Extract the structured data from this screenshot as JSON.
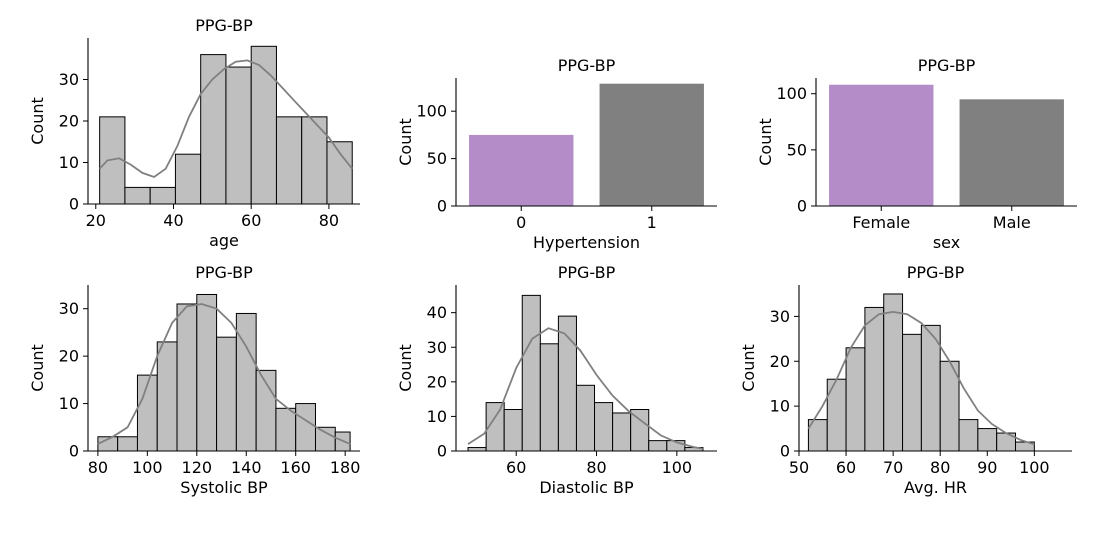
{
  "colors": {
    "hist_fill": "#bfbfbf",
    "hist_edge": "#000000",
    "kde_line": "#808080",
    "bar_purple": "#b48cc8",
    "bar_gray": "#808080"
  },
  "chart_data": [
    {
      "id": "age",
      "type": "histogram",
      "title": "PPG-BP",
      "xlabel": "age",
      "ylabel": "Count",
      "xlim": [
        18,
        88
      ],
      "ylim": [
        0,
        40
      ],
      "xticks": [
        20,
        40,
        60,
        80
      ],
      "yticks": [
        0,
        10,
        20,
        30
      ],
      "bins": [
        {
          "x0": 21,
          "x1": 27.5,
          "count": 21
        },
        {
          "x0": 27.5,
          "x1": 34,
          "count": 4
        },
        {
          "x0": 34,
          "x1": 40.5,
          "count": 4
        },
        {
          "x0": 40.5,
          "x1": 47,
          "count": 12
        },
        {
          "x0": 47,
          "x1": 53.5,
          "count": 36
        },
        {
          "x0": 53.5,
          "x1": 60,
          "count": 33
        },
        {
          "x0": 60,
          "x1": 66.5,
          "count": 38
        },
        {
          "x0": 66.5,
          "x1": 73,
          "count": 21
        },
        {
          "x0": 73,
          "x1": 79.5,
          "count": 21
        },
        {
          "x0": 79.5,
          "x1": 86,
          "count": 15
        }
      ],
      "kde": [
        [
          21,
          8.5
        ],
        [
          23,
          10.5
        ],
        [
          26,
          11
        ],
        [
          29,
          9.5
        ],
        [
          32,
          7.5
        ],
        [
          35,
          6.5
        ],
        [
          38,
          8.5
        ],
        [
          41,
          14
        ],
        [
          44,
          21
        ],
        [
          47,
          26.5
        ],
        [
          50,
          30
        ],
        [
          53,
          32.5
        ],
        [
          56,
          34.3
        ],
        [
          59,
          34.6
        ],
        [
          62,
          33.5
        ],
        [
          65,
          31
        ],
        [
          68,
          28
        ],
        [
          71,
          25
        ],
        [
          74,
          22
        ],
        [
          77,
          19
        ],
        [
          80,
          16
        ],
        [
          83,
          12
        ],
        [
          86,
          8.5
        ]
      ]
    },
    {
      "id": "hypertension",
      "type": "bar",
      "title": "PPG-BP",
      "xlabel": "Hypertension",
      "ylabel": "Count",
      "categories": [
        "0",
        "1"
      ],
      "values": [
        75,
        129
      ],
      "bar_colors": [
        "#b48cc8",
        "#808080"
      ],
      "ylim": [
        0,
        135
      ],
      "yticks": [
        0,
        50,
        100
      ]
    },
    {
      "id": "sex",
      "type": "bar",
      "title": "PPG-BP",
      "xlabel": "sex",
      "ylabel": "Count",
      "categories": [
        "Female",
        "Male"
      ],
      "values": [
        108,
        95
      ],
      "bar_colors": [
        "#b48cc8",
        "#808080"
      ],
      "ylim": [
        0,
        114
      ],
      "yticks": [
        0,
        50,
        100
      ]
    },
    {
      "id": "systolic",
      "type": "histogram",
      "title": "PPG-BP",
      "xlabel": "Systolic BP",
      "ylabel": "Count",
      "xlim": [
        76,
        186
      ],
      "ylim": [
        0,
        35
      ],
      "xticks": [
        80,
        100,
        120,
        140,
        160,
        180
      ],
      "yticks": [
        0,
        10,
        20,
        30
      ],
      "bins": [
        {
          "x0": 80,
          "x1": 88,
          "count": 3
        },
        {
          "x0": 88,
          "x1": 96,
          "count": 3
        },
        {
          "x0": 96,
          "x1": 104,
          "count": 16
        },
        {
          "x0": 104,
          "x1": 112,
          "count": 23
        },
        {
          "x0": 112,
          "x1": 120,
          "count": 31
        },
        {
          "x0": 120,
          "x1": 128,
          "count": 33
        },
        {
          "x0": 128,
          "x1": 136,
          "count": 24
        },
        {
          "x0": 136,
          "x1": 144,
          "count": 29
        },
        {
          "x0": 144,
          "x1": 152,
          "count": 17
        },
        {
          "x0": 152,
          "x1": 160,
          "count": 9
        },
        {
          "x0": 160,
          "x1": 168,
          "count": 10
        },
        {
          "x0": 168,
          "x1": 176,
          "count": 5
        },
        {
          "x0": 176,
          "x1": 182,
          "count": 4
        }
      ],
      "kde": [
        [
          80,
          1.5
        ],
        [
          86,
          3
        ],
        [
          92,
          5
        ],
        [
          98,
          11
        ],
        [
          104,
          20
        ],
        [
          110,
          27
        ],
        [
          116,
          30.5
        ],
        [
          122,
          31
        ],
        [
          128,
          30
        ],
        [
          134,
          27
        ],
        [
          140,
          22
        ],
        [
          146,
          16
        ],
        [
          152,
          11
        ],
        [
          158,
          8.5
        ],
        [
          164,
          6.5
        ],
        [
          170,
          4.5
        ],
        [
          176,
          2.8
        ],
        [
          182,
          1.5
        ]
      ]
    },
    {
      "id": "diastolic",
      "type": "histogram",
      "title": "PPG-BP",
      "xlabel": "Diastolic BP",
      "ylabel": "Count",
      "xlim": [
        45,
        110
      ],
      "ylim": [
        0,
        48
      ],
      "xticks": [
        60,
        80,
        100
      ],
      "yticks": [
        0,
        10,
        20,
        30,
        40
      ],
      "bins": [
        {
          "x0": 48,
          "x1": 52.5,
          "count": 1
        },
        {
          "x0": 52.5,
          "x1": 57,
          "count": 14
        },
        {
          "x0": 57,
          "x1": 61.5,
          "count": 12
        },
        {
          "x0": 61.5,
          "x1": 66,
          "count": 45
        },
        {
          "x0": 66,
          "x1": 70.5,
          "count": 31
        },
        {
          "x0": 70.5,
          "x1": 75,
          "count": 39
        },
        {
          "x0": 75,
          "x1": 79.5,
          "count": 19
        },
        {
          "x0": 79.5,
          "x1": 84,
          "count": 14
        },
        {
          "x0": 84,
          "x1": 88.5,
          "count": 11
        },
        {
          "x0": 88.5,
          "x1": 93,
          "count": 12
        },
        {
          "x0": 93,
          "x1": 97.5,
          "count": 3
        },
        {
          "x0": 97.5,
          "x1": 102,
          "count": 3
        },
        {
          "x0": 102,
          "x1": 106.5,
          "count": 1
        }
      ],
      "kde": [
        [
          48,
          2
        ],
        [
          52,
          5
        ],
        [
          56,
          12
        ],
        [
          60,
          24
        ],
        [
          64,
          32.5
        ],
        [
          68,
          35.5
        ],
        [
          72,
          34
        ],
        [
          76,
          29
        ],
        [
          80,
          22
        ],
        [
          84,
          16
        ],
        [
          88,
          11.5
        ],
        [
          92,
          8
        ],
        [
          96,
          4.5
        ],
        [
          100,
          2.5
        ],
        [
          104,
          1.2
        ],
        [
          106.5,
          0.6
        ]
      ]
    },
    {
      "id": "avghr",
      "type": "histogram",
      "title": "PPG-BP",
      "xlabel": "Avg. HR",
      "ylabel": "Count",
      "xlim": [
        50,
        108
      ],
      "ylim": [
        0,
        37
      ],
      "xticks": [
        50,
        60,
        70,
        80,
        90,
        100
      ],
      "yticks": [
        0,
        10,
        20,
        30
      ],
      "bins": [
        {
          "x0": 52,
          "x1": 56,
          "count": 7
        },
        {
          "x0": 56,
          "x1": 60,
          "count": 16
        },
        {
          "x0": 60,
          "x1": 64,
          "count": 23
        },
        {
          "x0": 64,
          "x1": 68,
          "count": 32
        },
        {
          "x0": 68,
          "x1": 72,
          "count": 35
        },
        {
          "x0": 72,
          "x1": 76,
          "count": 26
        },
        {
          "x0": 76,
          "x1": 80,
          "count": 28
        },
        {
          "x0": 80,
          "x1": 84,
          "count": 20
        },
        {
          "x0": 84,
          "x1": 88,
          "count": 7
        },
        {
          "x0": 88,
          "x1": 92,
          "count": 5
        },
        {
          "x0": 92,
          "x1": 96,
          "count": 4
        },
        {
          "x0": 96,
          "x1": 100,
          "count": 2
        }
      ],
      "kde": [
        [
          52,
          5
        ],
        [
          55,
          10
        ],
        [
          58,
          16
        ],
        [
          61,
          23
        ],
        [
          64,
          28
        ],
        [
          67,
          30.5
        ],
        [
          70,
          31
        ],
        [
          73,
          30.5
        ],
        [
          76,
          28.5
        ],
        [
          79,
          25
        ],
        [
          82,
          20
        ],
        [
          85,
          14
        ],
        [
          88,
          9
        ],
        [
          91,
          6
        ],
        [
          94,
          4
        ],
        [
          97,
          2.5
        ],
        [
          100,
          1.5
        ]
      ]
    }
  ]
}
